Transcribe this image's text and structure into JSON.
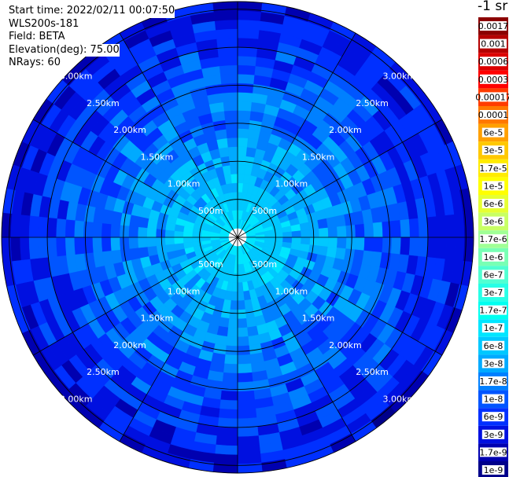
{
  "info": {
    "start_time": "Start time: 2022/02/11 00:07:50",
    "instrument": "WLS200s-181",
    "field": "Field: BETA",
    "elevation": "Elevation(deg): 75.00",
    "nrays": "NRays: 60"
  },
  "units_label": "-1 sr",
  "chart_data": {
    "type": "heatmap",
    "projection": "polar-ppi",
    "range_ring_labels": [
      "500m",
      "1.00km",
      "1.50km",
      "2.00km",
      "2.50km",
      "3.00km"
    ],
    "range_rings_km": [
      0.5,
      1.0,
      1.5,
      2.0,
      2.5,
      3.0
    ],
    "max_range_km": 3.1,
    "spokes_deg": [
      0,
      30,
      60,
      90,
      120,
      150,
      180,
      210,
      240,
      270,
      300,
      330
    ],
    "colorbar": {
      "labels": [
        "0.0017",
        "0.001",
        "0.0006",
        "0.0003",
        "0.00017",
        "0.0001",
        "6e-5",
        "3e-5",
        "1.7e-5",
        "1e-5",
        "6e-6",
        "3e-6",
        "1.7e-6",
        "1e-6",
        "6e-7",
        "3e-7",
        "1.7e-7",
        "1e-7",
        "6e-8",
        "3e-8",
        "1.7e-8",
        "1e-8",
        "6e-9",
        "3e-9",
        "1.7e-9",
        "1e-9"
      ],
      "colors": [
        "#8b0000",
        "#b40000",
        "#dc0000",
        "#ff0000",
        "#ff3c00",
        "#ff7800",
        "#ffa000",
        "#ffc800",
        "#ffeb00",
        "#ffff00",
        "#e6ff32",
        "#c8ff64",
        "#a0ff96",
        "#78ffb4",
        "#50ffd2",
        "#28ffe6",
        "#00fff0",
        "#00e6ff",
        "#00c8ff",
        "#00aaff",
        "#0080ff",
        "#0055ff",
        "#0030ff",
        "#0010e0",
        "#0000b0",
        "#00008b"
      ]
    },
    "rays": 60,
    "gates": 26,
    "range_profile": {
      "distance_km": [
        0.1,
        0.5,
        1.0,
        1.5,
        2.0,
        2.5,
        3.0
      ],
      "typical_beta": [
        "1e-7",
        "6e-8",
        "3e-8",
        "1.7e-8",
        "1e-8",
        "6e-9",
        "3e-9"
      ]
    }
  }
}
